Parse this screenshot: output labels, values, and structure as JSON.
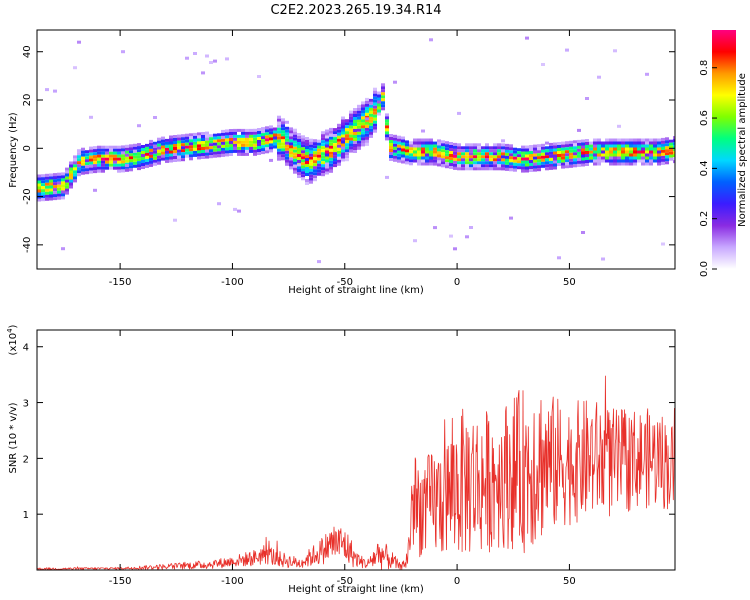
{
  "figure_title": "C2E2.2023.265.19.34.R14",
  "colors": {
    "snr_line": "#e8302a",
    "colormap": [
      "#ffffff",
      "#c8a8ff",
      "#8a2be2",
      "#3b1cff",
      "#0060ff",
      "#00d8ff",
      "#00ff80",
      "#7fff00",
      "#ffff00",
      "#ff9900",
      "#ff0000",
      "#ff0080"
    ]
  },
  "chart_data": [
    {
      "type": "heatmap",
      "xlabel": "Height of straight line (km)",
      "ylabel": "Frequency (Hz)",
      "xlim": [
        -187,
        97
      ],
      "ylim": [
        -50,
        49
      ],
      "x_ticks": [
        -150,
        -100,
        -50,
        0,
        50
      ],
      "y_ticks": [
        -40,
        -20,
        0,
        20,
        40
      ],
      "colorbar": {
        "label": "Normalized spectral amplitude",
        "range": [
          0,
          0.95
        ],
        "ticks": [
          0.0,
          0.2,
          0.4,
          0.6,
          0.8
        ]
      },
      "ridge": {
        "x": [
          -187,
          -175,
          -168,
          -160,
          -150,
          -142,
          -138,
          -130,
          -120,
          -110,
          -100,
          -90,
          -80,
          -75,
          -70,
          -65,
          -60,
          -55,
          -50,
          -45,
          -40,
          -35,
          -33,
          -30,
          -25,
          -20,
          -10,
          0,
          10,
          20,
          30,
          40,
          50,
          60,
          70,
          80,
          90,
          97
        ],
        "freq": [
          -16,
          -15,
          -5,
          -4,
          -4,
          -3,
          -2,
          0,
          1,
          2,
          3,
          3,
          5,
          2,
          -3,
          -5,
          -2,
          0,
          5,
          8,
          12,
          18,
          22,
          1,
          0,
          -1,
          -1,
          -3,
          -3,
          -3,
          -4,
          -3,
          -2,
          -1,
          -1,
          -1,
          -1,
          0
        ]
      }
    },
    {
      "type": "line",
      "xlabel": "Height of straight line (km)",
      "ylabel": "SNR (10 * v/v)",
      "y_scale_label": "(x10",
      "y_scale_exponent": "4",
      "xlim": [
        -187,
        97
      ],
      "ylim": [
        0,
        4.3
      ],
      "x_ticks": [
        -150,
        -100,
        -50,
        0,
        50
      ],
      "y_ticks": [
        1,
        2,
        3,
        4
      ],
      "envelope": {
        "x": [
          -187,
          -150,
          -130,
          -110,
          -100,
          -90,
          -85,
          -80,
          -70,
          -60,
          -55,
          -50,
          -47,
          -45,
          -40,
          -35,
          -30,
          -25,
          -22,
          -20,
          -15,
          -10,
          -5,
          0,
          5,
          10,
          20,
          30,
          35,
          40,
          50,
          60,
          70,
          80,
          90,
          97
        ],
        "mean": [
          0.02,
          0.03,
          0.06,
          0.1,
          0.15,
          0.22,
          0.3,
          0.2,
          0.12,
          0.35,
          0.5,
          0.45,
          0.3,
          0.2,
          0.1,
          0.3,
          0.2,
          0.05,
          0.2,
          1.2,
          1.1,
          1.2,
          1.3,
          1.5,
          1.6,
          1.55,
          1.7,
          1.8,
          2.0,
          1.9,
          1.9,
          2.0,
          1.9,
          2.0,
          2.0,
          1.8
        ],
        "amp": [
          0.02,
          0.02,
          0.05,
          0.08,
          0.1,
          0.15,
          0.2,
          0.15,
          0.1,
          0.25,
          0.35,
          0.35,
          0.25,
          0.15,
          0.08,
          0.3,
          0.2,
          0.05,
          0.2,
          0.9,
          0.9,
          1.0,
          1.1,
          1.3,
          1.4,
          1.3,
          1.3,
          1.5,
          1.6,
          1.3,
          1.1,
          1.1,
          1.0,
          0.9,
          0.9,
          0.8
        ]
      }
    }
  ]
}
